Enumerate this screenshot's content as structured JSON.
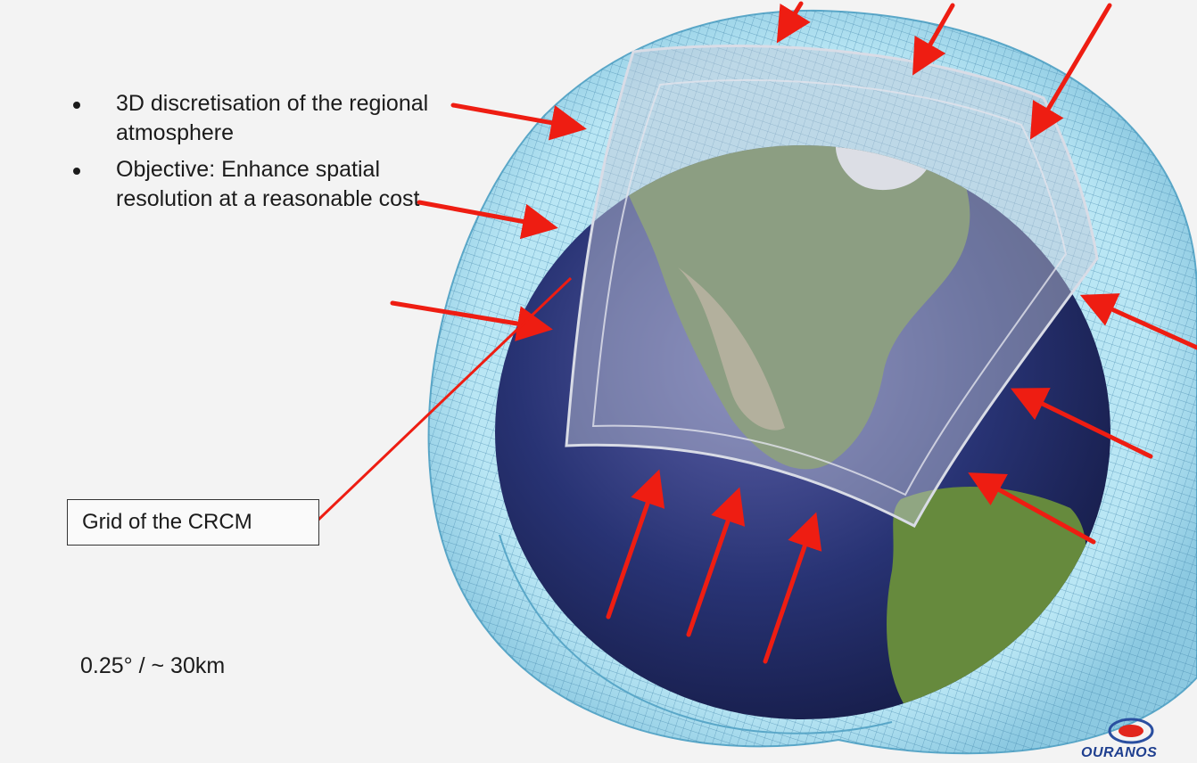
{
  "bullets": [
    "3D discretisation of the regional atmosphere",
    "Objective: Enhance spatial resolution at a reasonable cost"
  ],
  "grid_label": "Grid of the CRCM",
  "resolution": "0.25° / ~ 30km",
  "logo": "OURANOS",
  "colors": {
    "background": "#f3f3f3",
    "arrow": "#ee1d12",
    "grid_shell": "#8fd0e8",
    "ocean": "#1f2a63",
    "land": "#5c7f3a",
    "domain_overlay": "#c8ccd8"
  }
}
